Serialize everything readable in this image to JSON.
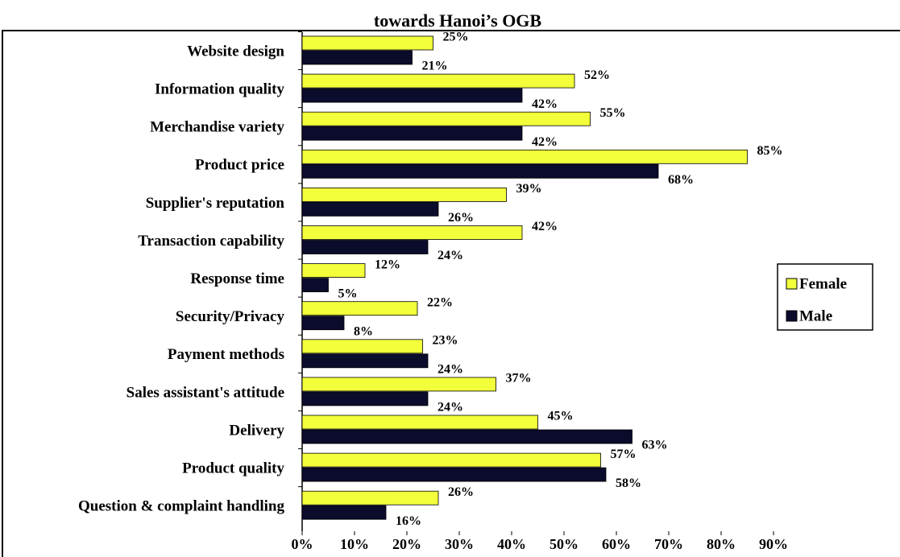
{
  "chart_data": {
    "type": "hbar",
    "title": "towards Hanoi’s OGB",
    "categories": [
      "Website design",
      "Information quality",
      "Merchandise variety",
      "Product price",
      "Supplier's reputation",
      "Transaction capability",
      "Response time",
      "Security/Privacy",
      "Payment methods",
      "Sales assistant's attitude",
      "Delivery",
      "Product quality",
      "Question & complaint handling"
    ],
    "series": [
      {
        "name": "Female",
        "color": "#f2ff3a",
        "values": [
          25,
          52,
          55,
          85,
          39,
          42,
          12,
          22,
          23,
          37,
          45,
          57,
          26
        ],
        "value_labels": [
          "25%",
          "52%",
          "55%",
          "85%",
          "39%",
          "42%",
          "12%",
          "22%",
          "23%",
          "37%",
          "45%",
          "57%",
          "26%"
        ]
      },
      {
        "name": "Male",
        "color": "#0b0b2b",
        "values": [
          21,
          42,
          42,
          68,
          26,
          24,
          5,
          8,
          24,
          24,
          63,
          58,
          16
        ],
        "value_labels": [
          "21%",
          "42%",
          "42%",
          "68%",
          "26%",
          "24%",
          "5%",
          "8%",
          "24%",
          "24%",
          "63%",
          "58%",
          "16%"
        ]
      }
    ],
    "xlim": [
      0,
      90
    ],
    "xticks": [
      {
        "value": 0,
        "label": "0%"
      },
      {
        "value": 10,
        "label": "10%"
      },
      {
        "value": 20,
        "label": "20%"
      },
      {
        "value": 30,
        "label": "30%"
      },
      {
        "value": 40,
        "label": "40%"
      },
      {
        "value": 50,
        "label": "50%"
      },
      {
        "value": 60,
        "label": "60%"
      },
      {
        "value": 70,
        "label": "70%"
      },
      {
        "value": 80,
        "label": "80%"
      },
      {
        "value": 90,
        "label": "90%"
      }
    ],
    "legend": "right"
  }
}
